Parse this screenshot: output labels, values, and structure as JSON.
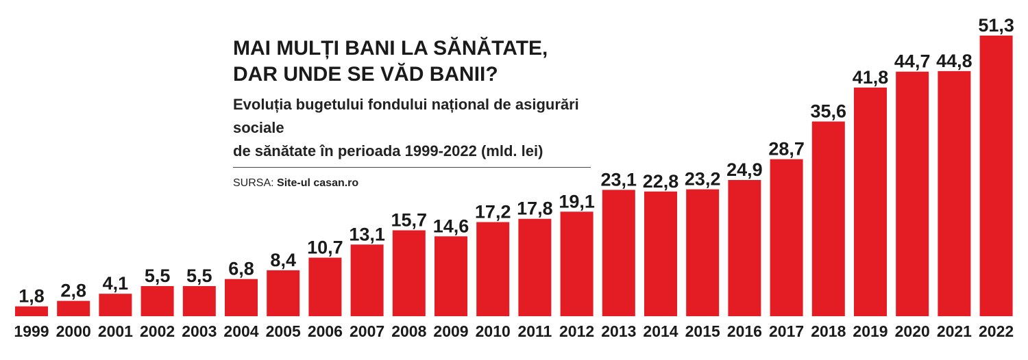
{
  "chart_data": {
    "type": "bar",
    "title_lines": [
      "MAI MULȚI BANI LA SĂNĂTATE,",
      "DAR UNDE SE VĂD BANII?"
    ],
    "subtitle_lines": [
      "Evoluția bugetului fondului național de asigurări sociale",
      "de sănătate în perioada 1999-2022 (mld. lei)"
    ],
    "source_label": "SURSA:",
    "source_value": "Site-ul casan.ro",
    "categories": [
      "1999",
      "2000",
      "2001",
      "2002",
      "2003",
      "2004",
      "2005",
      "2006",
      "2007",
      "2008",
      "2009",
      "2010",
      "2011",
      "2012",
      "2013",
      "2014",
      "2015",
      "2016",
      "2017",
      "2018",
      "2019",
      "2020",
      "2021",
      "2022"
    ],
    "values": [
      1.8,
      2.8,
      4.1,
      5.5,
      5.5,
      6.8,
      8.4,
      10.7,
      13.1,
      15.7,
      14.6,
      17.2,
      17.8,
      19.1,
      23.1,
      22.8,
      23.2,
      24.9,
      28.7,
      35.6,
      41.8,
      44.7,
      44.8,
      51.3
    ],
    "value_labels": [
      "1,8",
      "2,8",
      "4,1",
      "5,5",
      "5,5",
      "6,8",
      "8,4",
      "10,7",
      "13,1",
      "15,7",
      "14,6",
      "17,2",
      "17,8",
      "19,1",
      "23,1",
      "22,8",
      "23,2",
      "24,9",
      "28,7",
      "35,6",
      "41,8",
      "44,7",
      "44,8",
      "51,3"
    ],
    "ylim": [
      0,
      51.3
    ],
    "bar_color": "#e41c24",
    "grid": false,
    "legend": "none"
  }
}
